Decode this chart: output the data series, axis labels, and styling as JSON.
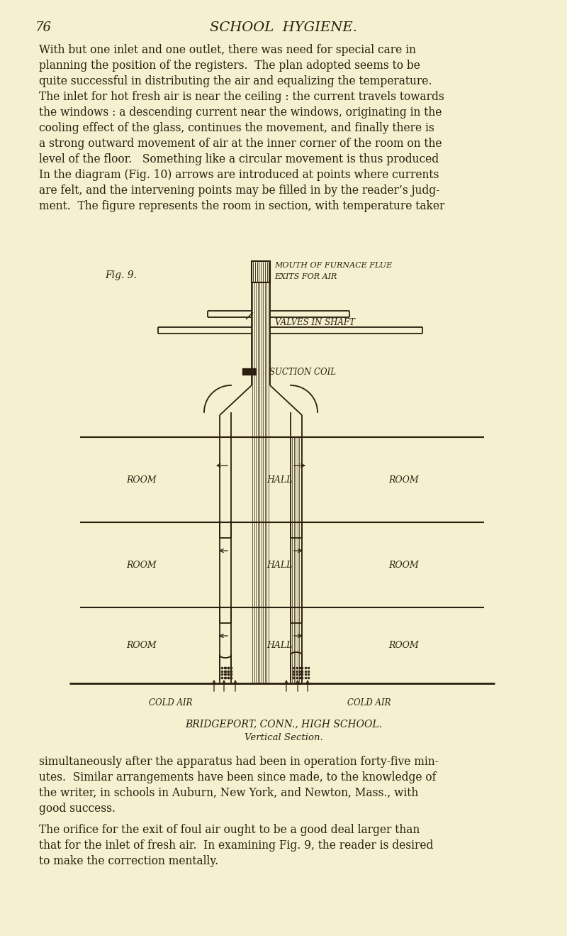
{
  "bg_color": "#f5f0d0",
  "text_color": "#2a1f0e",
  "page_number": "76",
  "header_title": "SCHOOL  HYGIENE.",
  "fig_label": "Fig. 9.",
  "label_mouth": "MOUTH OF FURNACE FLUE",
  "label_exits": "EXITS FOR AIR",
  "label_valves": "VALVES IN SHAFT",
  "label_suction": "SUCTION COIL",
  "label_room": "ROOM",
  "label_hall": "HALL",
  "label_cold_air_left": "COLD AIR",
  "label_cold_air_right": "COLD AIR",
  "caption1": "BRIDGEPORT, CONN., HIGH SCHOOL.",
  "caption2": "Vertical Section.",
  "para1_lines": [
    "With but one inlet and one outlet, there was need for special care in",
    "planning the position of the registers.  The plan adopted seems to be",
    "quite successful in distributing the air and equalizing the temperature.",
    "The inlet for hot fresh air is near the ceiling : the current travels towards",
    "the windows : a descending current near the windows, originating in the",
    "cooling effect of the glass, continues the movement, and finally there is",
    "a strong outward movement of air at the inner corner of the room on the",
    "level of the floor.   Something like a circular movement is thus produced",
    "In the diagram (Fig. 10) arrows are introduced at points where currents",
    "are felt, and the intervening points may be filled in by the reader’s judg-",
    "ment.  The figure represents the room in section, with temperature taker"
  ],
  "para2_lines": [
    "simultaneously after the apparatus had been in operation forty-five min-",
    "utes.  Similar arrangements have been since made, to the knowledge of",
    "the writer, in schools in Auburn, New York, and Newton, Mass., with",
    "good success."
  ],
  "para3_lines": [
    "The orifice for the exit of foul air ought to be a good deal larger than",
    "that for the inlet of fresh air.  In examining Fig. 9, the reader is desired",
    "to make the correction mentally."
  ]
}
